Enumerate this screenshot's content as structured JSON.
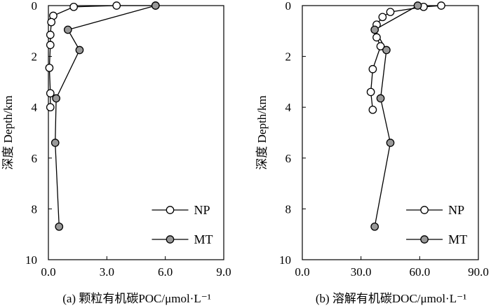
{
  "chart_data": [
    {
      "type": "line",
      "orientation": "vertical-profile",
      "caption": "(a) 颗粒有机碳POC/μmol·L⁻¹",
      "ylabel": "深度 Depth/km",
      "xlim": [
        0,
        9
      ],
      "ylim": [
        0,
        10
      ],
      "y_inverted": true,
      "x_ticks": [
        "0.0",
        "3.0",
        "6.0",
        "9.0"
      ],
      "y_ticks": [
        "0",
        "2",
        "4",
        "6",
        "8",
        "10"
      ],
      "x_tick_values": [
        0,
        3,
        6,
        9
      ],
      "y_tick_values": [
        0,
        2,
        4,
        6,
        8,
        10
      ],
      "legend_position": "lower-right",
      "series": [
        {
          "name": "NP",
          "marker": "open-circle",
          "color": "#000000",
          "fill": "#ffffff",
          "points": [
            {
              "x": 5.5,
              "y": 0.0
            },
            {
              "x": 3.5,
              "y": 0.0
            },
            {
              "x": 1.3,
              "y": 0.05
            },
            {
              "x": 0.25,
              "y": 0.4
            },
            {
              "x": 0.15,
              "y": 0.65
            },
            {
              "x": 0.1,
              "y": 1.15
            },
            {
              "x": 0.1,
              "y": 1.55
            },
            {
              "x": 0.05,
              "y": 2.45
            },
            {
              "x": 0.1,
              "y": 3.45
            },
            {
              "x": 0.1,
              "y": 4.0
            }
          ]
        },
        {
          "name": "MT",
          "marker": "filled-circle",
          "color": "#000000",
          "fill": "#999999",
          "points": [
            {
              "x": 5.5,
              "y": 0.0
            },
            {
              "x": 1.0,
              "y": 0.95
            },
            {
              "x": 1.6,
              "y": 1.75
            },
            {
              "x": 0.4,
              "y": 3.65
            },
            {
              "x": 0.35,
              "y": 5.4
            },
            {
              "x": 0.55,
              "y": 8.7
            }
          ]
        }
      ]
    },
    {
      "type": "line",
      "orientation": "vertical-profile",
      "caption": "(b) 溶解有机碳DOC/μmol·L⁻¹",
      "ylabel": "深度 Depth/km",
      "xlim": [
        0,
        90
      ],
      "ylim": [
        0,
        10
      ],
      "y_inverted": true,
      "x_ticks": [
        "0.0",
        "30.0",
        "60.0",
        "90.0"
      ],
      "y_ticks": [
        "0",
        "2",
        "4",
        "6",
        "8",
        "10"
      ],
      "x_tick_values": [
        0,
        30,
        60,
        90
      ],
      "y_tick_values": [
        0,
        2,
        4,
        6,
        8,
        10
      ],
      "legend_position": "lower-right",
      "series": [
        {
          "name": "NP",
          "marker": "open-circle",
          "color": "#000000",
          "fill": "#ffffff",
          "points": [
            {
              "x": 71,
              "y": 0.0
            },
            {
              "x": 62,
              "y": 0.05
            },
            {
              "x": 45,
              "y": 0.25
            },
            {
              "x": 41,
              "y": 0.45
            },
            {
              "x": 38,
              "y": 0.75
            },
            {
              "x": 38,
              "y": 1.25
            },
            {
              "x": 40,
              "y": 1.6
            },
            {
              "x": 36,
              "y": 2.5
            },
            {
              "x": 35,
              "y": 3.4
            },
            {
              "x": 36,
              "y": 4.1
            }
          ]
        },
        {
          "name": "MT",
          "marker": "filled-circle",
          "color": "#000000",
          "fill": "#999999",
          "points": [
            {
              "x": 59,
              "y": 0.0
            },
            {
              "x": 37,
              "y": 0.95
            },
            {
              "x": 43,
              "y": 1.75
            },
            {
              "x": 40,
              "y": 3.65
            },
            {
              "x": 45,
              "y": 5.4
            },
            {
              "x": 37,
              "y": 8.7
            }
          ]
        }
      ]
    }
  ]
}
